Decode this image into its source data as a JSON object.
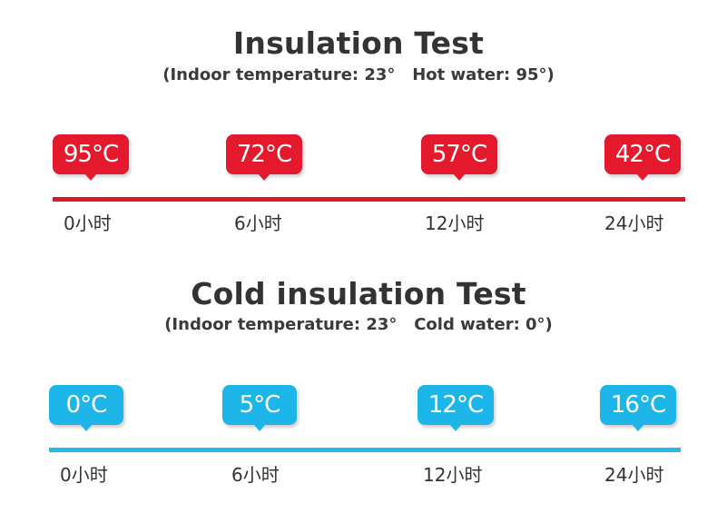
{
  "hot_test": {
    "title": "Insulation Test",
    "subtitle": "(Indoor temperature: 23°   Hot water: 95°)",
    "temperatures": [
      "95°C",
      "72°C",
      "57°C",
      "42°C"
    ],
    "times": [
      "0小时",
      "6小时",
      "12小时",
      "24小时"
    ],
    "color": "#e5192e"
  },
  "cold_test": {
    "title": "Cold insulation Test",
    "subtitle": "(Indoor temperature: 23°   Cold water: 0°)",
    "temperatures": [
      "0°C",
      "5°C",
      "12°C",
      "16°C"
    ],
    "times": [
      "0小时",
      "6小时",
      "12小时",
      "24小时"
    ],
    "color": "#1eb6e8"
  }
}
